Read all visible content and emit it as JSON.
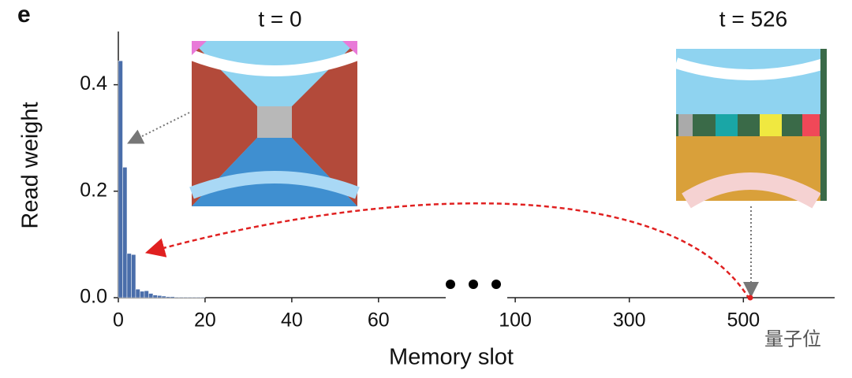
{
  "panel_label": "e",
  "chart_data": {
    "type": "bar",
    "x_label": "Memory slot",
    "y_label": "Read weight",
    "annotations": [
      "t = 0",
      "t = 526"
    ],
    "watermark": "量子位",
    "color": "#4a6eaa",
    "x": [
      0,
      1,
      2,
      3,
      4,
      5,
      6,
      7,
      8,
      9,
      10,
      11,
      12,
      13,
      14,
      15,
      16,
      17,
      18,
      19
    ],
    "values": [
      0.445,
      0.245,
      0.083,
      0.081,
      0.016,
      0.012,
      0.013,
      0.008,
      0.005,
      0.004,
      0.003,
      0.002,
      0.002,
      0.001,
      0.001,
      0.001,
      0.001,
      0.001,
      0.001,
      0.001
    ],
    "x_segments": [
      {
        "xlim": [
          0,
          75.5
        ],
        "xticks": [
          0,
          20,
          40,
          60
        ]
      },
      {
        "xlim": [
          86,
          660
        ],
        "xticks": [
          100,
          300,
          500
        ]
      }
    ],
    "highlight": {
      "x": 512,
      "y": 0,
      "color": "#e02020"
    },
    "ylim": [
      0,
      0.5
    ],
    "yticks": [
      {
        "value": 0,
        "label": "0.0"
      },
      0.2,
      0.4
    ]
  }
}
